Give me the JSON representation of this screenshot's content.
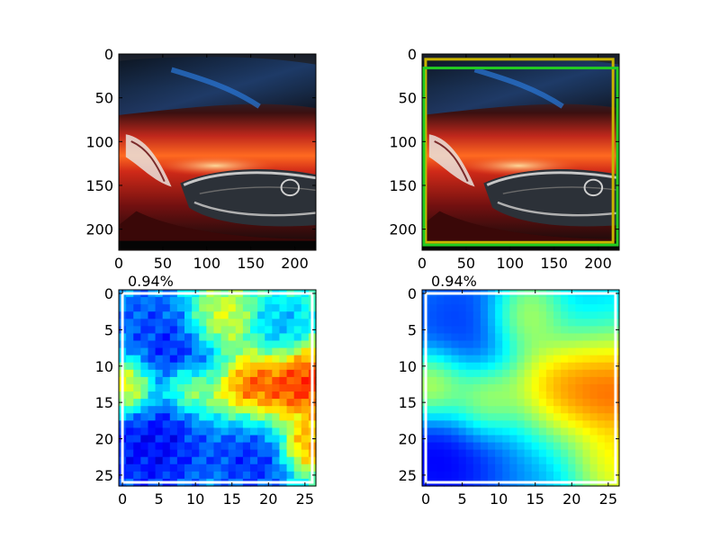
{
  "figure": {
    "background": "#ffffff",
    "grid": false,
    "layout": "2x2 subplots"
  },
  "chart_data": [
    {
      "type": "image",
      "panel": "top-left",
      "content": "photo of front of red car (headlight, grille with emblem, hood)",
      "xlim": [
        0,
        224
      ],
      "ylim": [
        224,
        0
      ],
      "xticks": [
        0,
        50,
        100,
        150,
        200
      ],
      "yticks": [
        0,
        50,
        100,
        150,
        200
      ],
      "title": ""
    },
    {
      "type": "image",
      "panel": "top-right",
      "content": "same car photo with two bounding boxes overlaid",
      "xlim": [
        0,
        224
      ],
      "ylim": [
        224,
        0
      ],
      "xticks": [
        0,
        50,
        100,
        150,
        200
      ],
      "yticks": [
        0,
        50,
        100,
        150,
        200
      ],
      "title": "",
      "boxes": [
        {
          "color": "#c8b400",
          "x0": 4,
          "y0": 6,
          "x1": 217,
          "y1": 215
        },
        {
          "color": "#22cc22",
          "x0": 2,
          "y0": 16,
          "x1": 222,
          "y1": 218
        }
      ]
    },
    {
      "type": "heatmap",
      "panel": "bottom-left",
      "colormap": "jet",
      "smoothing": "low",
      "xlim": [
        0,
        26
      ],
      "ylim": [
        26,
        0
      ],
      "xticks": [
        0,
        5,
        10,
        15,
        20,
        25
      ],
      "yticks": [
        0,
        5,
        10,
        15,
        20,
        25
      ],
      "title": "0.94%",
      "rect": {
        "color": "#ffffff",
        "x0": 0,
        "y0": 0,
        "x1": 26,
        "y1": 26
      },
      "blobs": [
        {
          "x": 4,
          "y": 21,
          "v": 0.02,
          "r": 5.0
        },
        {
          "x": 8,
          "y": 9,
          "v": 0.05,
          "r": 4.0
        },
        {
          "x": 3,
          "y": 3,
          "v": 0.15,
          "r": 3.5
        },
        {
          "x": 18,
          "y": 23,
          "v": 0.08,
          "r": 3.5
        },
        {
          "x": 16,
          "y": 19,
          "v": 0.12,
          "r": 2.5
        },
        {
          "x": 13,
          "y": 4,
          "v": 0.7,
          "r": 2.5
        },
        {
          "x": 17,
          "y": 14,
          "v": 0.95,
          "r": 3.2
        },
        {
          "x": 25,
          "y": 12,
          "v": 0.95,
          "r": 3.0
        },
        {
          "x": 1,
          "y": 13,
          "v": 0.85,
          "r": 2.2
        },
        {
          "x": 9,
          "y": 13,
          "v": 0.8,
          "r": 2.0
        },
        {
          "x": 25,
          "y": 21,
          "v": 0.85,
          "r": 2.0
        },
        {
          "x": 22,
          "y": 5,
          "v": 0.25,
          "r": 2.5
        }
      ]
    },
    {
      "type": "heatmap",
      "panel": "bottom-right",
      "colormap": "jet",
      "smoothing": "high",
      "xlim": [
        0,
        26
      ],
      "ylim": [
        26,
        0
      ],
      "xticks": [
        0,
        5,
        10,
        15,
        20,
        25
      ],
      "yticks": [
        0,
        5,
        10,
        15,
        20,
        25
      ],
      "title": "0.94%",
      "rect": {
        "color": "#ffffff",
        "x0": 0,
        "y0": 0,
        "x1": 26,
        "y1": 26
      },
      "blobs": [
        {
          "x": 3,
          "y": 22,
          "v": 0.0,
          "r": 6.5
        },
        {
          "x": 5,
          "y": 4,
          "v": 0.1,
          "r": 6.0
        },
        {
          "x": 22,
          "y": 4,
          "v": 0.25,
          "r": 5.5
        },
        {
          "x": 16,
          "y": 22,
          "v": 0.25,
          "r": 6.0
        },
        {
          "x": 14,
          "y": 3,
          "v": 0.75,
          "r": 3.0
        },
        {
          "x": 24,
          "y": 12,
          "v": 1.0,
          "r": 5.0
        },
        {
          "x": 18,
          "y": 14,
          "v": 0.9,
          "r": 4.5
        },
        {
          "x": 1,
          "y": 13,
          "v": 0.85,
          "r": 3.0
        },
        {
          "x": 8,
          "y": 15,
          "v": 0.8,
          "r": 3.0
        },
        {
          "x": 25,
          "y": 23,
          "v": 0.75,
          "r": 3.5
        }
      ]
    }
  ]
}
